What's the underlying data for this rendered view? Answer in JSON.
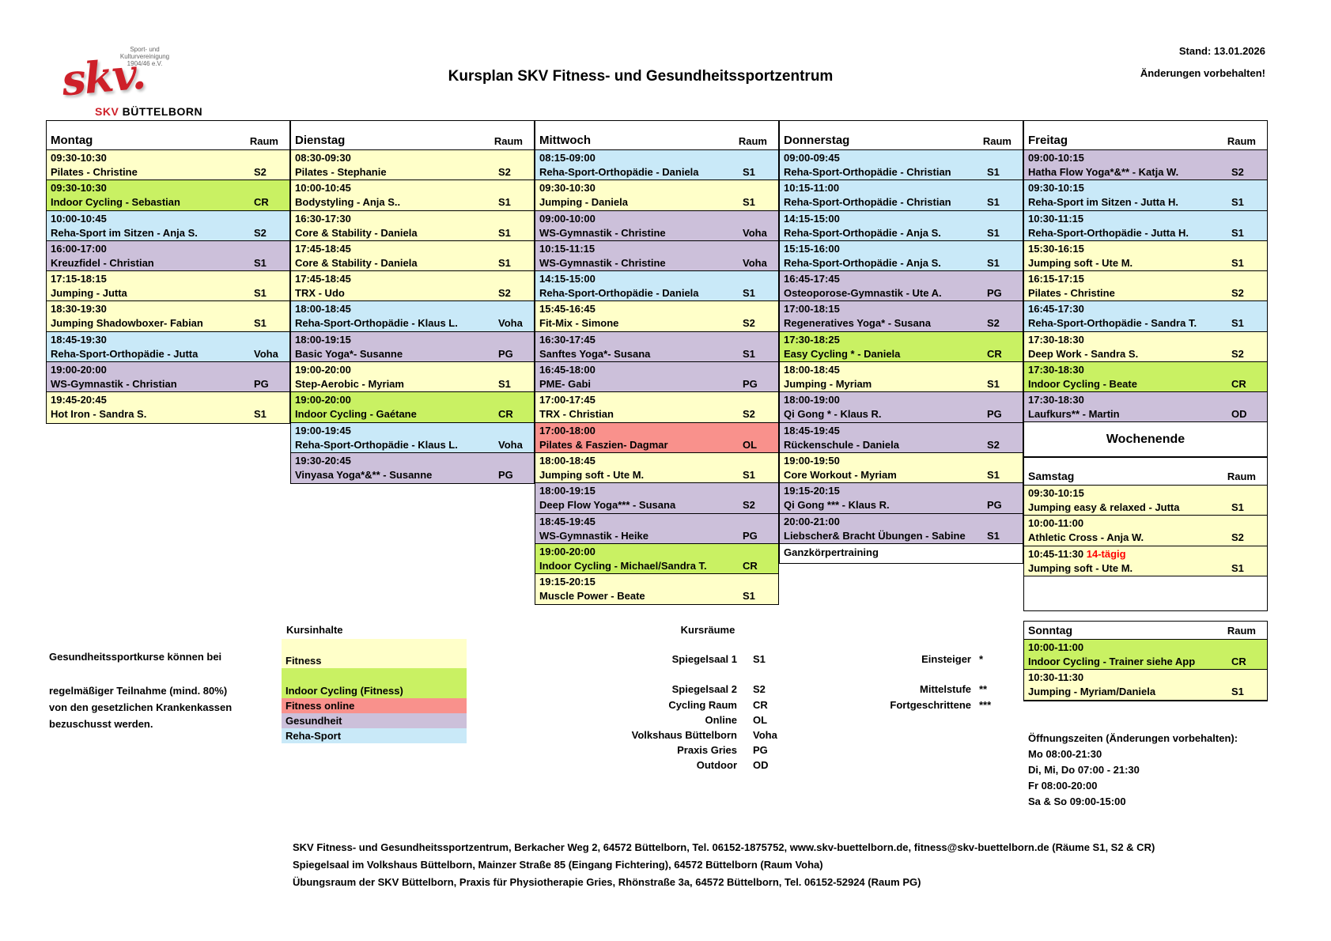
{
  "colors": {
    "fitness": "#FFFFC9",
    "indoor_cycling": "#C9F163",
    "fitness_online": "#F9918C",
    "gesundheit": "#CCC0DA",
    "reha_sport": "#C9E9F8",
    "accent_red": "#FF0000",
    "logo_red": "#CE2029"
  },
  "header": {
    "logo_top": [
      "Sport- und",
      "Kulturvereinigung",
      "1904/46 e.V."
    ],
    "logo_script": "skv.",
    "logo_brand_red": "SKV",
    "logo_brand_black": " BÜTTELBORN",
    "title": "Kursplan SKV Fitness- und Gesundheitssportzentrum",
    "stand": "Stand: 13.01.2026",
    "note": "Änderungen vorbehalten!"
  },
  "room_col_header": "Raum",
  "schedule": {
    "days": [
      {
        "name": "Montag",
        "courses": [
          {
            "time": "09:30-10:30",
            "name": "Pilates - Christine",
            "room": "S2",
            "cat": "fitness"
          },
          {
            "time": "09:30-10:30",
            "name": "Indoor Cycling - Sebastian",
            "room": "CR",
            "cat": "indoor_cycling"
          },
          {
            "time": "10:00-10:45",
            "name": "Reha-Sport im Sitzen - Anja S.",
            "room": "S2",
            "cat": "reha_sport"
          },
          {
            "time": "16:00-17:00",
            "name": "Kreuzfidel - Christian",
            "room": "S1",
            "cat": "gesundheit"
          },
          {
            "time": "17:15-18:15",
            "name": "Jumping - Jutta",
            "room": "S1",
            "cat": "fitness"
          },
          {
            "time": "18:30-19:30",
            "name": "Jumping Shadowboxer- Fabian",
            "room": "S1",
            "cat": "fitness"
          },
          {
            "time": "18:45-19:30",
            "name": "Reha-Sport-Orthopädie - Jutta",
            "room": "Voha",
            "cat": "reha_sport"
          },
          {
            "time": "19:00-20:00",
            "name": "WS-Gymnastik - Christian",
            "room": "PG",
            "cat": "gesundheit"
          },
          {
            "time": "19:45-20:45",
            "name": "Hot Iron - Sandra S.",
            "room": "S1",
            "cat": "fitness"
          }
        ]
      },
      {
        "name": "Dienstag",
        "courses": [
          {
            "time": "08:30-09:30",
            "name": "Pilates - Stephanie",
            "room": "S2",
            "cat": "fitness"
          },
          {
            "time": "10:00-10:45",
            "name": "Bodystyling - Anja S..",
            "room": "S1",
            "cat": "fitness"
          },
          {
            "time": "16:30-17:30",
            "name": "Core & Stability - Daniela",
            "room": "S1",
            "cat": "fitness"
          },
          {
            "time": "17:45-18:45",
            "name": "Core & Stability - Daniela",
            "room": "S1",
            "cat": "fitness"
          },
          {
            "time": "17:45-18:45",
            "name": "TRX - Udo",
            "room": "S2",
            "cat": "fitness"
          },
          {
            "time": "18:00-18:45",
            "name": "Reha-Sport-Orthopädie - Klaus L.",
            "room": "Voha",
            "cat": "reha_sport"
          },
          {
            "time": "18:00-19:15",
            "name": "Basic Yoga*- Susanne",
            "room": "PG",
            "cat": "gesundheit"
          },
          {
            "time": "19:00-20:00",
            "name": "Step-Aerobic - Myriam",
            "room": "S1",
            "cat": "fitness"
          },
          {
            "time": "19:00-20:00",
            "name": "Indoor Cycling - Gaétane",
            "room": "CR",
            "cat": "indoor_cycling"
          },
          {
            "time": "19:00-19:45",
            "name": "Reha-Sport-Orthopädie - Klaus L.",
            "room": "Voha",
            "cat": "reha_sport"
          },
          {
            "time": "19:30-20:45",
            "name": "Vinyasa Yoga*&** - Susanne",
            "room": "PG",
            "cat": "gesundheit"
          }
        ]
      },
      {
        "name": "Mittwoch",
        "courses": [
          {
            "time": "08:15-09:00",
            "name": "Reha-Sport-Orthopädie - Daniela",
            "room": "S1",
            "cat": "reha_sport"
          },
          {
            "time": "09:30-10:30",
            "name": "Jumping - Daniela",
            "room": "S1",
            "cat": "fitness"
          },
          {
            "time": "09:00-10:00",
            "name": "WS-Gymnastik - Christine",
            "room": "Voha",
            "cat": "gesundheit"
          },
          {
            "time": "10:15-11:15",
            "name": "WS-Gymnastik - Christine",
            "room": "Voha",
            "cat": "gesundheit"
          },
          {
            "time": "14:15-15:00",
            "name": "Reha-Sport-Orthopädie - Daniela",
            "room": "S1",
            "cat": "reha_sport"
          },
          {
            "time": "15:45-16:45",
            "name": "Fit-Mix - Simone",
            "room": "S2",
            "cat": "fitness"
          },
          {
            "time": "16:30-17:45",
            "name": "Sanftes Yoga*- Susana",
            "room": "S1",
            "cat": "gesundheit"
          },
          {
            "time": "16:45-18:00",
            "name": "PME- Gabi",
            "room": "PG",
            "cat": "gesundheit"
          },
          {
            "time": "17:00-17:45",
            "name": "TRX - Christian",
            "room": "S2",
            "cat": "fitness"
          },
          {
            "time": "17:00-18:00",
            "name": "Pilates & Faszien- Dagmar",
            "room": "OL",
            "cat": "fitness_online"
          },
          {
            "time": "18:00-18:45",
            "name": "Jumping soft - Ute M.",
            "room": "S1",
            "cat": "fitness"
          },
          {
            "time": "18:00-19:15",
            "name": "Deep Flow Yoga*** - Susana",
            "room": "S2",
            "cat": "gesundheit"
          },
          {
            "time": "18:45-19:45",
            "name": "WS-Gymnastik - Heike",
            "room": "PG",
            "cat": "gesundheit"
          },
          {
            "time": "19:00-20:00",
            "name": "Indoor Cycling - Michael/Sandra T.",
            "room": "CR",
            "cat": "indoor_cycling"
          },
          {
            "time": "19:15-20:15",
            "name": "Muscle Power - Beate",
            "room": "S1",
            "cat": "fitness"
          }
        ]
      },
      {
        "name": "Donnerstag",
        "extra_row": "Ganzkörpertraining",
        "courses": [
          {
            "time": "09:00-09:45",
            "name": "Reha-Sport-Orthopädie - Christian",
            "room": "S1",
            "cat": "reha_sport"
          },
          {
            "time": "10:15-11:00",
            "name": "Reha-Sport-Orthopädie - Christian",
            "room": "S1",
            "cat": "reha_sport"
          },
          {
            "time": "14:15-15:00",
            "name": "Reha-Sport-Orthopädie - Anja S.",
            "room": "S1",
            "cat": "reha_sport"
          },
          {
            "time": "15:15-16:00",
            "name": "Reha-Sport-Orthopädie - Anja S.",
            "room": "S1",
            "cat": "reha_sport"
          },
          {
            "time": "16:45-17:45",
            "name": "Osteoporose-Gymnastik - Ute A.",
            "room": "PG",
            "cat": "gesundheit"
          },
          {
            "time": "17:00-18:15",
            "name": "Regeneratives Yoga* - Susana",
            "room": "S2",
            "cat": "gesundheit"
          },
          {
            "time": "17:30-18:25",
            "name": "Easy Cycling * - Daniela",
            "room": "CR",
            "cat": "indoor_cycling"
          },
          {
            "time": "18:00-18:45",
            "name": "Jumping - Myriam",
            "room": "S1",
            "cat": "fitness"
          },
          {
            "time": "18:00-19:00",
            "name": "Qi Gong * - Klaus R.",
            "room": "PG",
            "cat": "gesundheit"
          },
          {
            "time": "18:45-19:45",
            "name": "Rückenschule - Daniela",
            "room": "S2",
            "cat": "gesundheit"
          },
          {
            "time": "19:00-19:50",
            "name": "Core Workout - Myriam",
            "room": "S1",
            "cat": "fitness"
          },
          {
            "time": "19:15-20:15",
            "name": "Qi Gong *** - Klaus R.",
            "room": "PG",
            "cat": "gesundheit"
          },
          {
            "time": "20:00-21:00",
            "name": "Liebscher& Bracht Übungen - Sabine",
            "room": "S1",
            "cat": "gesundheit"
          }
        ]
      },
      {
        "name": "Freitag",
        "courses": [
          {
            "time": "09:00-10:15",
            "name": "Hatha Flow Yoga*&** - Katja W.",
            "room": "S2",
            "cat": "gesundheit"
          },
          {
            "time": "09:30-10:15",
            "name": "Reha-Sport im Sitzen - Jutta H.",
            "room": "S1",
            "cat": "reha_sport"
          },
          {
            "time": "10:30-11:15",
            "name": "Reha-Sport-Orthopädie - Jutta H.",
            "room": "S1",
            "cat": "reha_sport"
          },
          {
            "time": "15:30-16:15",
            "name": "Jumping soft - Ute M.",
            "room": "S1",
            "cat": "fitness"
          },
          {
            "time": "16:15-17:15",
            "name": "Pilates - Christine",
            "room": "S2",
            "cat": "fitness"
          },
          {
            "time": "16:45-17:30",
            "name": "Reha-Sport-Orthopädie - Sandra T.",
            "room": "S1",
            "cat": "reha_sport"
          },
          {
            "time": "17:30-18:30",
            "name": "Deep Work - Sandra S.",
            "room": "S2",
            "cat": "fitness"
          },
          {
            "time": "17:30-18:30",
            "name": "Indoor Cycling - Beate",
            "room": "CR",
            "cat": "indoor_cycling"
          },
          {
            "time": "17:30-18:30",
            "name": "Laufkurs** - Martin",
            "room": "OD",
            "cat": "gesundheit"
          }
        ]
      }
    ],
    "weekend_title": "Wochenende",
    "weekend_days": [
      {
        "name": "Samstag",
        "courses": [
          {
            "time": "09:30-10:15",
            "name": "Jumping easy & relaxed - Jutta",
            "room": "S1",
            "cat": "fitness"
          },
          {
            "time": "10:00-11:00",
            "name": "Athletic Cross - Anja W.",
            "room": "S2",
            "cat": "fitness"
          },
          {
            "time": "10:45-11:30",
            "time_note": "14-tägig",
            "name": "Jumping soft - Ute M.",
            "room": "S1",
            "cat": "fitness"
          }
        ]
      },
      {
        "name": "Sonntag",
        "courses": [
          {
            "time": "10:00-11:00",
            "name": "Indoor Cycling - Trainer siehe App",
            "room": "CR",
            "cat": "indoor_cycling"
          },
          {
            "time": "10:30-11:30",
            "name": "Jumping - Myriam/Daniela",
            "room": "S1",
            "cat": "fitness"
          }
        ]
      }
    ]
  },
  "subsidy_note": [
    "Gesundheitssportkurse können bei",
    "regelmäßiger Teilnahme (mind. 80%)",
    "von den gesetzlichen Krankenkassen",
    "bezuschusst werden."
  ],
  "legend_categories": {
    "title": "Kursinhalte",
    "items": [
      {
        "label": "Fitness",
        "cat": "fitness"
      },
      {
        "label": "Indoor Cycling (Fitness)",
        "cat": "indoor_cycling"
      },
      {
        "label": "Fitness online",
        "cat": "fitness_online"
      },
      {
        "label": "Gesundheit",
        "cat": "gesundheit"
      },
      {
        "label": "Reha-Sport",
        "cat": "reha_sport"
      }
    ]
  },
  "legend_rooms": {
    "title": "Kursräume",
    "items": [
      {
        "label": "Spiegelsaal 1",
        "code": "S1"
      },
      {
        "label": "Spiegelsaal 2",
        "code": "S2"
      },
      {
        "label": "Cycling Raum",
        "code": "CR"
      },
      {
        "label": "Online",
        "code": "OL"
      },
      {
        "label": "Volkshaus Büttelborn",
        "code": "Voha"
      },
      {
        "label": "Praxis Gries",
        "code": "PG"
      },
      {
        "label": "Outdoor",
        "code": "OD"
      }
    ]
  },
  "legend_levels": [
    {
      "label": "Einsteiger",
      "stars": "*"
    },
    {
      "label": "Mittelstufe",
      "stars": "**"
    },
    {
      "label": "Fortgeschrittene",
      "stars": "***"
    }
  ],
  "opening_hours": [
    "Öffnungszeiten (Änderungen vorbehalten):",
    "Mo 08:00-21:30",
    "Di, Mi, Do 07:00 - 21:30",
    "Fr 08:00-20:00",
    "Sa & So 09:00-15:00"
  ],
  "footer": [
    "SKV Fitness- und Gesundheitssportzentrum, Berkacher Weg 2, 64572 Büttelborn, Tel. 06152-1875752, www.skv-buettelborn.de, fitness@skv-buettelborn.de (Räume S1, S2 & CR)",
    "Spiegelsaal im Volkshaus Büttelborn, Mainzer Straße 85 (Eingang Fichtering), 64572 Büttelborn (Raum Voha)",
    "Übungsraum der SKV Büttelborn, Praxis für Physiotherapie Gries, Rhönstraße 3a, 64572 Büttelborn, Tel. 06152-52924 (Raum PG)"
  ]
}
